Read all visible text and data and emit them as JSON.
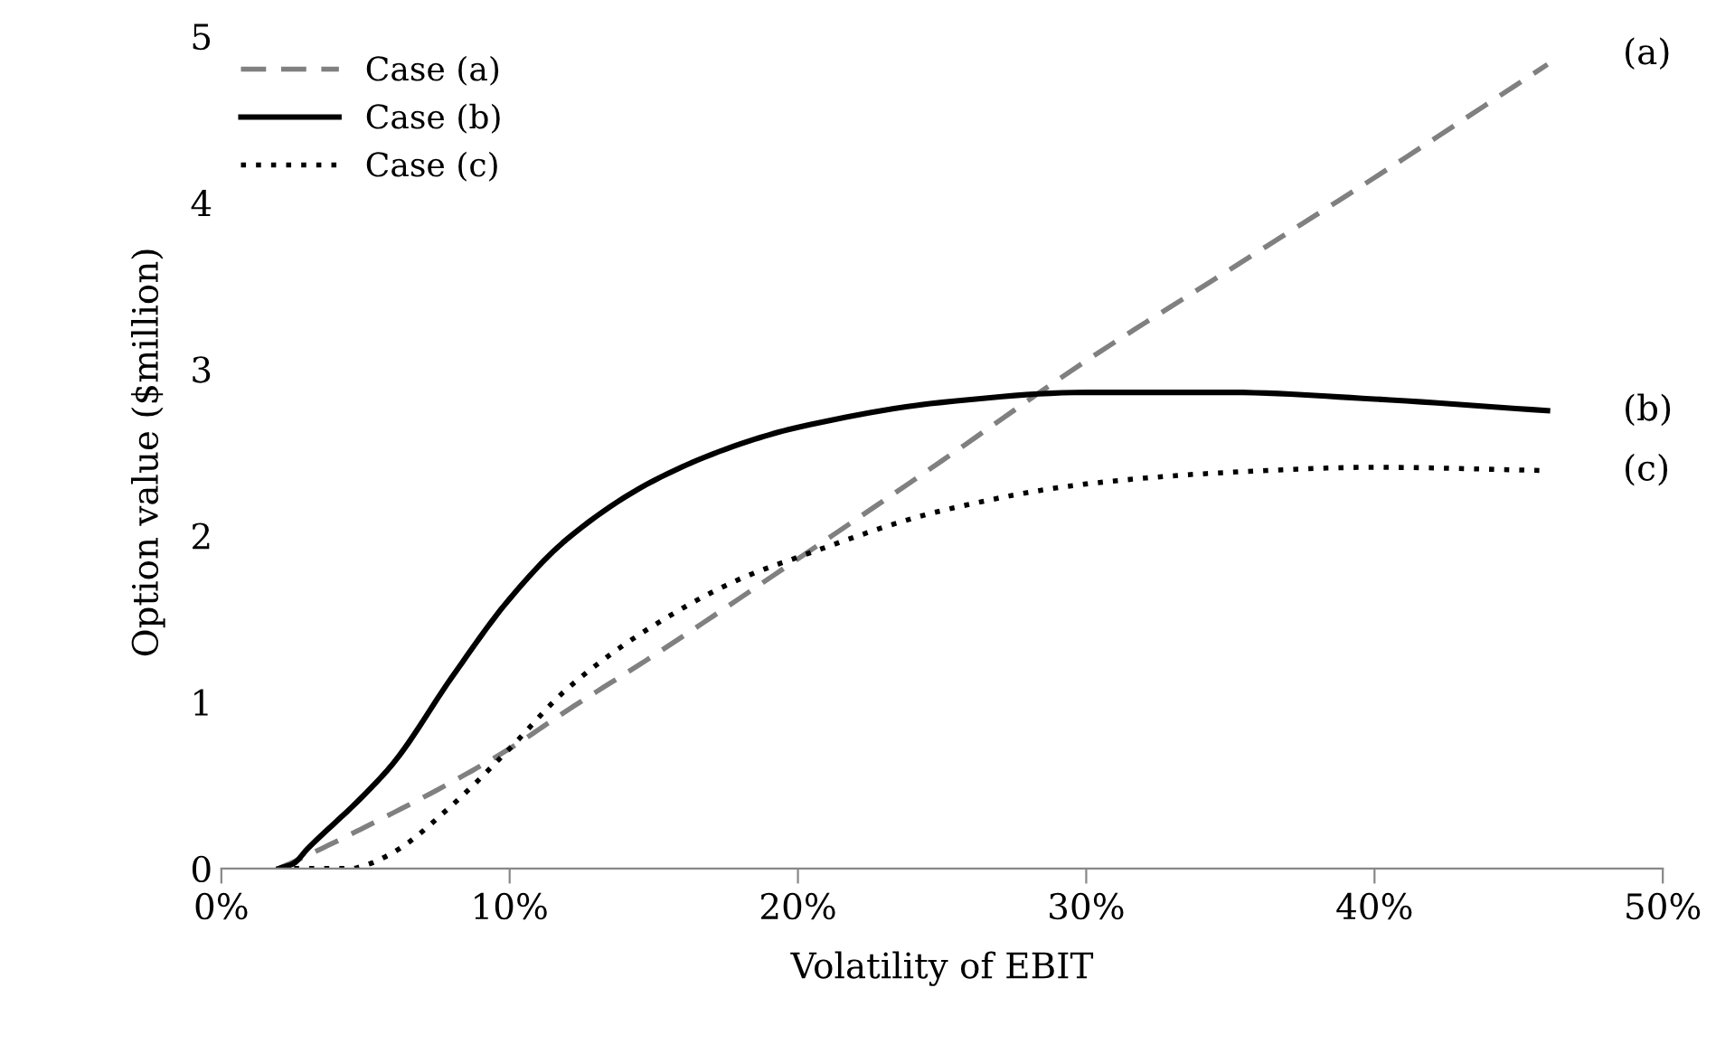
{
  "chart_data": {
    "type": "line",
    "xlabel": "Volatility of EBIT",
    "ylabel": "Option value ($million)",
    "xlim": [
      0,
      50
    ],
    "xticks": [
      {
        "value": 0,
        "label": "0%"
      },
      {
        "value": 10,
        "label": "10%"
      },
      {
        "value": 20,
        "label": "20%"
      },
      {
        "value": 30,
        "label": "30%"
      },
      {
        "value": 40,
        "label": "40%"
      },
      {
        "value": 50,
        "label": "50%"
      }
    ],
    "ylim": [
      0,
      5
    ],
    "yticks": [
      0,
      1,
      2,
      3,
      4,
      5
    ],
    "grid": false,
    "legend": "top left",
    "marker": "none",
    "series": [
      {
        "name": "Case (a)",
        "color": "#808080",
        "line_style": "dashed",
        "x": [
          2,
          3,
          5,
          8,
          10,
          12,
          15,
          20,
          25,
          30,
          35,
          40,
          46
        ],
        "values": [
          0,
          0.08,
          0.25,
          0.52,
          0.72,
          0.95,
          1.28,
          1.86,
          2.45,
          3.05,
          3.6,
          4.15,
          4.83
        ]
      },
      {
        "name": "Case (b)",
        "color": "#000000",
        "line_style": "solid",
        "x": [
          2,
          2.5,
          3,
          5,
          6,
          8,
          10,
          12,
          15,
          18,
          20,
          25,
          30,
          32,
          35,
          40,
          46
        ],
        "values": [
          0,
          0.03,
          0.12,
          0.45,
          0.64,
          1.15,
          1.62,
          1.98,
          2.33,
          2.55,
          2.65,
          2.8,
          2.86,
          2.86,
          2.86,
          2.82,
          2.75
        ]
      },
      {
        "name": "Case (c)",
        "color": "#000000",
        "line_style": "dotted",
        "x": [
          2,
          3,
          4.5,
          5,
          6,
          8,
          10,
          12,
          15,
          18,
          20,
          25,
          30,
          35,
          40,
          46
        ],
        "values": [
          0,
          0,
          0,
          0.02,
          0.1,
          0.38,
          0.72,
          1.08,
          1.46,
          1.74,
          1.87,
          2.15,
          2.31,
          2.38,
          2.41,
          2.39
        ]
      }
    ],
    "annotations": [
      "(a)",
      "(b)",
      "(c)"
    ]
  }
}
